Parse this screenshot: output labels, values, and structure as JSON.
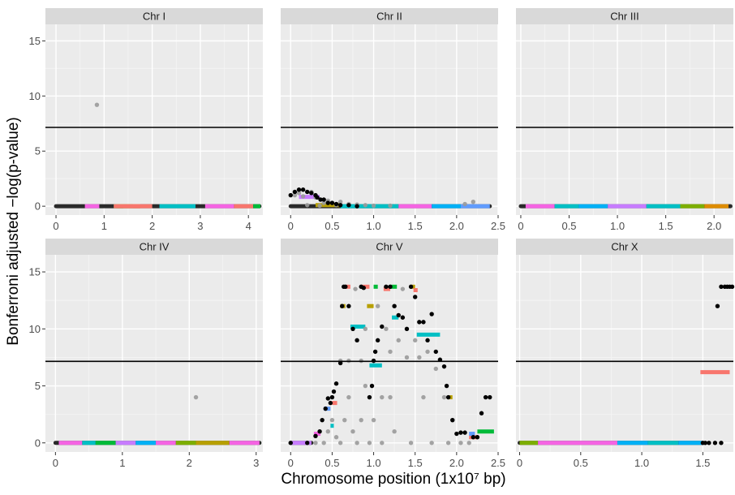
{
  "chart_data": {
    "type": "scatter",
    "xlabel": "Chromosome position (1x10⁷ bp)",
    "ylabel": "Bonferroni adjusted −log(p-value)",
    "ylim": [
      -0.8,
      16.5
    ],
    "y_ticks": [
      0,
      5,
      10,
      15
    ],
    "threshold": 7.15,
    "grid": true,
    "facets": [
      {
        "title": "Chr I",
        "xlim": [
          -0.22,
          4.3
        ],
        "x_ticks": [
          0,
          1,
          2,
          3,
          4
        ],
        "points_gray": [
          [
            0.85,
            9.2
          ]
        ],
        "points_black": [],
        "baseline": [
          0.0,
          4.23
        ],
        "segments": [
          {
            "x0": 0.6,
            "x1": 0.9,
            "y": 0,
            "color": "#F564E3"
          },
          {
            "x0": 1.2,
            "x1": 1.4,
            "y": 0,
            "color": "#00BA38"
          },
          {
            "x0": 1.25,
            "x1": 1.75,
            "y": 0,
            "color": "#B79F00"
          },
          {
            "x0": 1.2,
            "x1": 1.75,
            "y": 0,
            "color": "#F8766D"
          },
          {
            "x0": 1.6,
            "x1": 2.0,
            "y": 0,
            "color": "#F8766D"
          },
          {
            "x0": 2.15,
            "x1": 2.9,
            "y": 0,
            "color": "#00BFC4"
          },
          {
            "x0": 3.1,
            "x1": 3.7,
            "y": 0,
            "color": "#F564E3"
          },
          {
            "x0": 3.7,
            "x1": 4.1,
            "y": 0,
            "color": "#F8766D"
          },
          {
            "x0": 4.1,
            "x1": 4.25,
            "y": 0,
            "color": "#00BA38"
          }
        ]
      },
      {
        "title": "Chr II",
        "xlim": [
          -0.12,
          2.5
        ],
        "x_ticks": [
          0,
          0.5,
          1.0,
          1.5,
          2.0,
          2.5
        ],
        "x_tick_labels": [
          "0",
          "0.5",
          "1.0",
          "1.5",
          "2.0",
          "2.5"
        ],
        "points_gray": [
          [
            0.05,
            1.0
          ],
          [
            0.1,
            1.2
          ],
          [
            0.15,
            0.9
          ],
          [
            0.25,
            1.3
          ],
          [
            0.3,
            0.8
          ],
          [
            0.4,
            0.3
          ],
          [
            0.45,
            0.5
          ],
          [
            0.5,
            0.3
          ],
          [
            0.55,
            0.1
          ],
          [
            0.6,
            0.4
          ],
          [
            0.7,
            0.2
          ],
          [
            0.8,
            0.15
          ],
          [
            0.9,
            0.1
          ],
          [
            1.0,
            0.05
          ],
          [
            1.2,
            0.05
          ],
          [
            2.1,
            0.2
          ],
          [
            2.2,
            0.4
          ],
          [
            0.2,
            0.1
          ],
          [
            0.35,
            0.05
          ]
        ],
        "points_black": [
          [
            0.0,
            1.0
          ],
          [
            0.05,
            1.3
          ],
          [
            0.1,
            1.5
          ],
          [
            0.15,
            1.5
          ],
          [
            0.2,
            1.3
          ],
          [
            0.25,
            1.2
          ],
          [
            0.3,
            1.0
          ],
          [
            0.32,
            0.8
          ],
          [
            0.36,
            0.6
          ],
          [
            0.4,
            0.6
          ],
          [
            0.45,
            0.3
          ],
          [
            0.5,
            0.3
          ],
          [
            0.55,
            0.2
          ],
          [
            0.6,
            0.1
          ],
          [
            0.7,
            0.1
          ],
          [
            0.8,
            0.0
          ]
        ],
        "baseline": [
          0.0,
          2.4
        ],
        "segments": [
          {
            "x0": 0.1,
            "x1": 0.35,
            "y": 0.85,
            "color": "#C77CFF"
          },
          {
            "x0": 0.3,
            "x1": 0.6,
            "y": 0.1,
            "color": "#B79F00"
          },
          {
            "x0": 0.6,
            "x1": 1.3,
            "y": 0,
            "color": "#00BFC4"
          },
          {
            "x0": 1.3,
            "x1": 1.7,
            "y": 0,
            "color": "#F564E3"
          },
          {
            "x0": 1.7,
            "x1": 2.05,
            "y": 0,
            "color": "#00B0F6"
          },
          {
            "x0": 2.05,
            "x1": 2.4,
            "y": 0,
            "color": "#619CFF"
          }
        ]
      },
      {
        "title": "Chr III",
        "xlim": [
          -0.05,
          2.2
        ],
        "x_ticks": [
          0,
          0.5,
          1.0,
          1.5,
          2.0
        ],
        "x_tick_labels": [
          "0",
          "0.5",
          "1.0",
          "1.5",
          "2.0"
        ],
        "points_gray": [],
        "points_black": [],
        "baseline": [
          0.0,
          2.17
        ],
        "segments": [
          {
            "x0": 0.05,
            "x1": 0.35,
            "y": 0,
            "color": "#F564E3"
          },
          {
            "x0": 0.35,
            "x1": 0.6,
            "y": 0,
            "color": "#00BFC4"
          },
          {
            "x0": 0.6,
            "x1": 0.9,
            "y": 0,
            "color": "#00B0F6"
          },
          {
            "x0": 0.9,
            "x1": 1.3,
            "y": 0,
            "color": "#C77CFF"
          },
          {
            "x0": 1.3,
            "x1": 1.65,
            "y": 0,
            "color": "#00BFC4"
          },
          {
            "x0": 1.65,
            "x1": 1.9,
            "y": 0,
            "color": "#7CAE00"
          },
          {
            "x0": 1.9,
            "x1": 2.15,
            "y": 0,
            "color": "#DE8C00"
          }
        ]
      },
      {
        "title": "Chr IV",
        "xlim": [
          -0.15,
          3.1
        ],
        "x_ticks": [
          0,
          1,
          2,
          3
        ],
        "points_gray": [
          [
            2.1,
            4.0
          ]
        ],
        "points_black": [],
        "baseline": [
          0.0,
          3.05
        ],
        "segments": [
          {
            "x0": 0.05,
            "x1": 0.4,
            "y": 0,
            "color": "#F564E3"
          },
          {
            "x0": 0.4,
            "x1": 0.6,
            "y": 0,
            "color": "#00BFC4"
          },
          {
            "x0": 0.6,
            "x1": 0.9,
            "y": 0,
            "color": "#00BA38"
          },
          {
            "x0": 0.9,
            "x1": 1.2,
            "y": 0,
            "color": "#C77CFF"
          },
          {
            "x0": 1.2,
            "x1": 1.5,
            "y": 0,
            "color": "#00B0F6"
          },
          {
            "x0": 1.5,
            "x1": 1.8,
            "y": 0,
            "color": "#F564E3"
          },
          {
            "x0": 1.8,
            "x1": 2.1,
            "y": 0,
            "color": "#7CAE00"
          },
          {
            "x0": 2.1,
            "x1": 2.6,
            "y": 0,
            "color": "#B79F00"
          },
          {
            "x0": 2.6,
            "x1": 3.05,
            "y": 0,
            "color": "#F564E3"
          }
        ]
      },
      {
        "title": "Chr V",
        "xlim": [
          -0.12,
          2.5
        ],
        "x_ticks": [
          0,
          0.5,
          1.0,
          1.5,
          2.0,
          2.5
        ],
        "x_tick_labels": [
          "0",
          "0.5",
          "1.0",
          "1.5",
          "2.0",
          "2.5"
        ],
        "points_gray": [
          [
            0.3,
            0.0
          ],
          [
            0.4,
            0.0
          ],
          [
            0.45,
            1.0
          ],
          [
            0.5,
            2.0
          ],
          [
            0.55,
            0.5
          ],
          [
            0.6,
            0.0
          ],
          [
            0.65,
            2.0
          ],
          [
            0.7,
            4.0
          ],
          [
            0.7,
            7.2
          ],
          [
            0.75,
            1.0
          ],
          [
            0.78,
            13.5
          ],
          [
            0.8,
            0.0
          ],
          [
            0.85,
            2.0
          ],
          [
            0.9,
            5.0
          ],
          [
            0.9,
            10.0
          ],
          [
            0.95,
            0.0
          ],
          [
            1.0,
            2.0
          ],
          [
            1.0,
            7.2
          ],
          [
            1.05,
            12.0
          ],
          [
            1.1,
            0.0
          ],
          [
            1.1,
            4.0
          ],
          [
            1.15,
            10.0
          ],
          [
            1.2,
            8.0
          ],
          [
            1.25,
            1.0
          ],
          [
            1.3,
            9.0
          ],
          [
            1.35,
            13.5
          ],
          [
            1.4,
            7.5
          ],
          [
            1.45,
            0.0
          ],
          [
            1.5,
            9.0
          ],
          [
            1.55,
            7.5
          ],
          [
            1.6,
            4.0
          ],
          [
            1.65,
            8.0
          ],
          [
            1.7,
            0.0
          ],
          [
            1.75,
            6.5
          ],
          [
            1.85,
            4.0
          ],
          [
            1.9,
            0.0
          ],
          [
            1.95,
            2.0
          ],
          [
            2.05,
            0.0
          ],
          [
            2.15,
            0.0
          ],
          [
            0.6,
            7.2
          ],
          [
            0.85,
            7.2
          ],
          [
            1.2,
            4.0
          ]
        ],
        "points_black": [
          [
            0.0,
            0.0
          ],
          [
            0.2,
            0.0
          ],
          [
            0.3,
            0.6
          ],
          [
            0.35,
            1.0
          ],
          [
            0.38,
            2.0
          ],
          [
            0.42,
            3.0
          ],
          [
            0.45,
            3.9
          ],
          [
            0.48,
            3.5
          ],
          [
            0.5,
            4.0
          ],
          [
            0.52,
            4.5
          ],
          [
            0.55,
            5.2
          ],
          [
            0.6,
            7.0
          ],
          [
            0.62,
            12.0
          ],
          [
            0.64,
            13.7
          ],
          [
            0.66,
            13.7
          ],
          [
            0.7,
            12.0
          ],
          [
            0.75,
            10.0
          ],
          [
            0.8,
            9.0
          ],
          [
            0.85,
            13.7
          ],
          [
            0.88,
            13.6
          ],
          [
            0.95,
            4.0
          ],
          [
            0.98,
            5.0
          ],
          [
            1.0,
            7.2
          ],
          [
            1.02,
            8.0
          ],
          [
            1.05,
            9.0
          ],
          [
            1.1,
            10.2
          ],
          [
            1.15,
            13.7
          ],
          [
            1.2,
            13.7
          ],
          [
            1.25,
            12.0
          ],
          [
            1.3,
            11.2
          ],
          [
            1.35,
            11.0
          ],
          [
            1.4,
            10.0
          ],
          [
            1.45,
            13.7
          ],
          [
            1.5,
            12.8
          ],
          [
            1.55,
            10.6
          ],
          [
            1.6,
            10.6
          ],
          [
            1.65,
            9.0
          ],
          [
            1.7,
            11.3
          ],
          [
            1.75,
            8.0
          ],
          [
            1.8,
            7.3
          ],
          [
            1.85,
            6.7
          ],
          [
            1.88,
            5.0
          ],
          [
            1.9,
            4.0
          ],
          [
            1.95,
            2.0
          ],
          [
            2.0,
            0.8
          ],
          [
            2.05,
            0.9
          ],
          [
            2.1,
            0.9
          ],
          [
            2.2,
            0.5
          ],
          [
            2.25,
            0.5
          ],
          [
            2.3,
            2.6
          ],
          [
            2.35,
            4.0
          ],
          [
            2.4,
            4.0
          ]
        ],
        "baseline": [
          0.0,
          0.25
        ],
        "segments": [
          {
            "x0": 0.0,
            "x1": 0.25,
            "y": 0,
            "color": "#C77CFF"
          },
          {
            "x0": 0.28,
            "x1": 0.36,
            "y": 0.8,
            "color": "#F564E3"
          },
          {
            "x0": 0.4,
            "x1": 0.48,
            "y": 3.0,
            "color": "#619CFF"
          },
          {
            "x0": 0.48,
            "x1": 0.52,
            "y": 1.5,
            "color": "#00BFC4"
          },
          {
            "x0": 0.5,
            "x1": 0.56,
            "y": 3.5,
            "color": "#F8766D"
          },
          {
            "x0": 0.6,
            "x1": 0.66,
            "y": 12.0,
            "color": "#B79F00"
          },
          {
            "x0": 0.66,
            "x1": 0.72,
            "y": 13.7,
            "color": "#F8766D"
          },
          {
            "x0": 0.72,
            "x1": 0.9,
            "y": 10.2,
            "color": "#00BFC4"
          },
          {
            "x0": 0.95,
            "x1": 1.1,
            "y": 6.8,
            "color": "#00BFC4"
          },
          {
            "x0": 0.85,
            "x1": 0.95,
            "y": 13.7,
            "color": "#F8766D"
          },
          {
            "x0": 0.92,
            "x1": 1.0,
            "y": 12.0,
            "color": "#B79F00"
          },
          {
            "x0": 1.0,
            "x1": 1.05,
            "y": 13.7,
            "color": "#00BA38"
          },
          {
            "x0": 1.12,
            "x1": 1.2,
            "y": 13.5,
            "color": "#F8766D"
          },
          {
            "x0": 1.2,
            "x1": 1.28,
            "y": 13.7,
            "color": "#00BA38"
          },
          {
            "x0": 1.22,
            "x1": 1.3,
            "y": 11.0,
            "color": "#00BFC4"
          },
          {
            "x0": 1.45,
            "x1": 1.5,
            "y": 13.7,
            "color": "#B79F00"
          },
          {
            "x0": 1.48,
            "x1": 1.53,
            "y": 13.4,
            "color": "#F8766D"
          },
          {
            "x0": 1.52,
            "x1": 1.8,
            "y": 9.5,
            "color": "#00BFC4"
          },
          {
            "x0": 1.9,
            "x1": 1.95,
            "y": 4.0,
            "color": "#B79F00"
          },
          {
            "x0": 2.15,
            "x1": 2.25,
            "y": 0.5,
            "color": "#F8766D"
          },
          {
            "x0": 2.15,
            "x1": 2.22,
            "y": 0.8,
            "color": "#619CFF"
          },
          {
            "x0": 2.25,
            "x1": 2.45,
            "y": 1.0,
            "color": "#00BA38"
          }
        ]
      },
      {
        "title": "Chr X",
        "xlim": [
          -0.03,
          1.75
        ],
        "x_ticks": [
          0,
          0.5,
          1.0,
          1.5
        ],
        "x_tick_labels": [
          "0",
          "0.5",
          "1.0",
          "1.5"
        ],
        "points_gray": [],
        "points_black": [
          [
            1.5,
            0.0
          ],
          [
            1.52,
            0.0
          ],
          [
            1.55,
            0.0
          ],
          [
            1.6,
            0.0
          ],
          [
            1.65,
            0.0
          ],
          [
            1.62,
            12.0
          ],
          [
            1.65,
            13.7
          ],
          [
            1.68,
            13.7
          ],
          [
            1.7,
            13.7
          ],
          [
            1.72,
            13.7
          ],
          [
            1.74,
            13.7
          ]
        ],
        "baseline": [
          0.0,
          1.5
        ],
        "segments": [
          {
            "x0": 0.0,
            "x1": 0.15,
            "y": 0,
            "color": "#7CAE00"
          },
          {
            "x0": 0.15,
            "x1": 0.8,
            "y": 0,
            "color": "#F564E3"
          },
          {
            "x0": 0.8,
            "x1": 1.05,
            "y": 0,
            "color": "#00B0F6"
          },
          {
            "x0": 1.05,
            "x1": 1.3,
            "y": 0,
            "color": "#00BFC4"
          },
          {
            "x0": 1.3,
            "x1": 1.5,
            "y": 0,
            "color": "#00B0F6"
          },
          {
            "x0": 1.48,
            "x1": 1.72,
            "y": 6.2,
            "color": "#F8766D"
          }
        ]
      }
    ]
  }
}
